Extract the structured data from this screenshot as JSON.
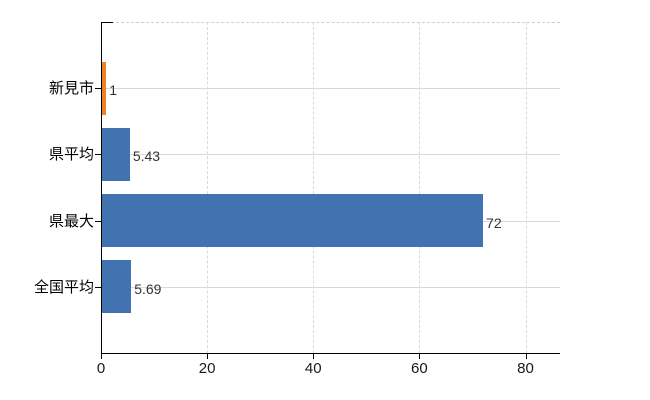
{
  "chart_data": {
    "type": "bar",
    "orientation": "horizontal",
    "title": "",
    "xlabel": "",
    "ylabel": "",
    "categories": [
      "新見市",
      "県平均",
      "県最大",
      "全国平均"
    ],
    "values": [
      1,
      5.43,
      72,
      5.69
    ],
    "value_labels": [
      "1",
      "5.43",
      "72",
      "5.69"
    ],
    "x_ticks": [
      0,
      20,
      40,
      60,
      80
    ],
    "x_tick_labels": [
      "0",
      "20",
      "40",
      "60",
      "80"
    ],
    "xlim": [
      0,
      86.5
    ],
    "grid": true,
    "legend": "none",
    "bar_colors": [
      "#ee8227",
      "#4173b0",
      "#4173b0",
      "#4173b0"
    ],
    "colors": {
      "highlight_bar": "#ee8227",
      "default_bar": "#4173b0",
      "gridline": "#d9d9d9",
      "plot_top_border": "#cfcfcf",
      "axis": "#000000",
      "value_text": "#333333",
      "tick_text": "#1a1a1a",
      "background": "#ffffff"
    }
  }
}
